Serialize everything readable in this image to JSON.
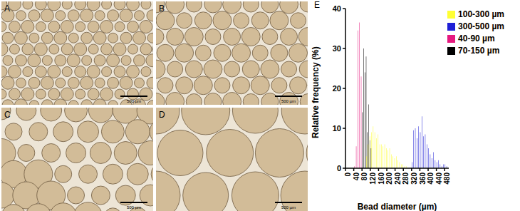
{
  "panels": [
    {
      "label": "A",
      "scale_bar": "500 µm"
    },
    {
      "label": "B",
      "scale_bar": "500 µm"
    },
    {
      "label": "C",
      "scale_bar": "500 µm"
    },
    {
      "label": "D",
      "scale_bar": "500 µm"
    }
  ],
  "chart_panel_label": "E",
  "chart_data": {
    "type": "bar",
    "x_label": "Bead diameter (µm)",
    "y_label": "Relative frequency (%)",
    "xlim": [
      0,
      500
    ],
    "xticks": [
      0,
      40,
      80,
      120,
      160,
      200,
      240,
      280,
      320,
      360,
      400,
      440,
      480
    ],
    "ylim": [
      0,
      40
    ],
    "yticks": [
      0,
      10,
      20,
      30,
      40
    ],
    "grid": false,
    "legend": "upper right",
    "series": [
      {
        "name": "40-90 µm",
        "color": "#e6197f",
        "x": [
          44,
          52,
          60,
          68,
          76
        ],
        "values": [
          0.5,
          5.5,
          34.5,
          36.5,
          23
        ]
      },
      {
        "name": "70-150 µm",
        "color": "#000000",
        "x": [
          82,
          88,
          94,
          100,
          106,
          112,
          118,
          124
        ],
        "values": [
          14,
          30,
          24,
          28,
          9,
          16,
          7,
          5
        ]
      },
      {
        "name": "100-300 µm",
        "color": "#ffff33",
        "x": [
          102,
          110,
          118,
          126,
          134,
          142,
          150,
          158,
          166,
          174,
          182,
          190,
          198,
          206,
          214,
          222,
          230,
          238,
          246,
          254,
          262,
          270,
          278,
          286,
          294
        ],
        "values": [
          3,
          6,
          8,
          9,
          10.5,
          9,
          7.5,
          8.5,
          6,
          6,
          5.5,
          6,
          5,
          4.5,
          5,
          3.5,
          3,
          2.5,
          3,
          2,
          1.5,
          1,
          1,
          0.5,
          0.5
        ]
      },
      {
        "name": "300-500 µm",
        "color": "#1f1fd6",
        "x": [
          322,
          330,
          338,
          346,
          354,
          362,
          370,
          378,
          386,
          394,
          402,
          410,
          418,
          426,
          434,
          442,
          450,
          458,
          466,
          474,
          482,
          490
        ],
        "values": [
          1.5,
          9.5,
          10,
          7.5,
          10.5,
          9,
          13,
          8,
          8.5,
          6,
          5,
          3.5,
          2.5,
          4,
          2,
          1.5,
          2,
          1,
          0.5,
          1,
          1,
          0.5
        ]
      }
    ]
  }
}
